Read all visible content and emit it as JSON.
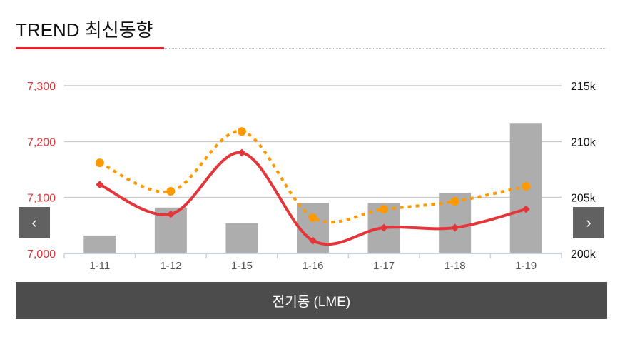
{
  "header": {
    "title": "TREND 최신동향"
  },
  "caption": "전기동 (LME)",
  "nav": {
    "prev": "‹",
    "next": "›"
  },
  "colors": {
    "red": "#e4363a",
    "orange": "#ff9900",
    "bar": "#adadad",
    "accent": "#e4262c"
  },
  "chart_data": {
    "type": "bar+line",
    "categories": [
      "1-11",
      "1-12",
      "1-15",
      "1-16",
      "1-17",
      "1-18",
      "1-19"
    ],
    "left_axis": {
      "range": [
        7000,
        7300
      ],
      "ticks": [
        "7,000",
        "7,100",
        "7,200",
        "7,300"
      ],
      "tick_values": [
        7000,
        7100,
        7200,
        7300
      ]
    },
    "right_axis": {
      "range": [
        200000,
        215000
      ],
      "ticks": [
        "200k",
        "205k",
        "210k",
        "215k"
      ],
      "tick_values": [
        200000,
        205000,
        210000,
        215000
      ]
    },
    "grid": true,
    "series": [
      {
        "type": "bar",
        "axis": "right",
        "values": [
          201600,
          204100,
          202700,
          204500,
          204500,
          205400,
          211600
        ]
      },
      {
        "type": "line",
        "axis": "left",
        "style": "solid",
        "marker": "diamond",
        "color": "#e4363a",
        "values": [
          7123,
          7070,
          7180,
          7023,
          7046,
          7046,
          7079
        ]
      },
      {
        "type": "line",
        "axis": "left",
        "style": "dotted",
        "marker": "circle",
        "color": "#ff9900",
        "values": [
          7162,
          7111,
          7218,
          7064,
          7079,
          7093,
          7120
        ]
      }
    ]
  }
}
